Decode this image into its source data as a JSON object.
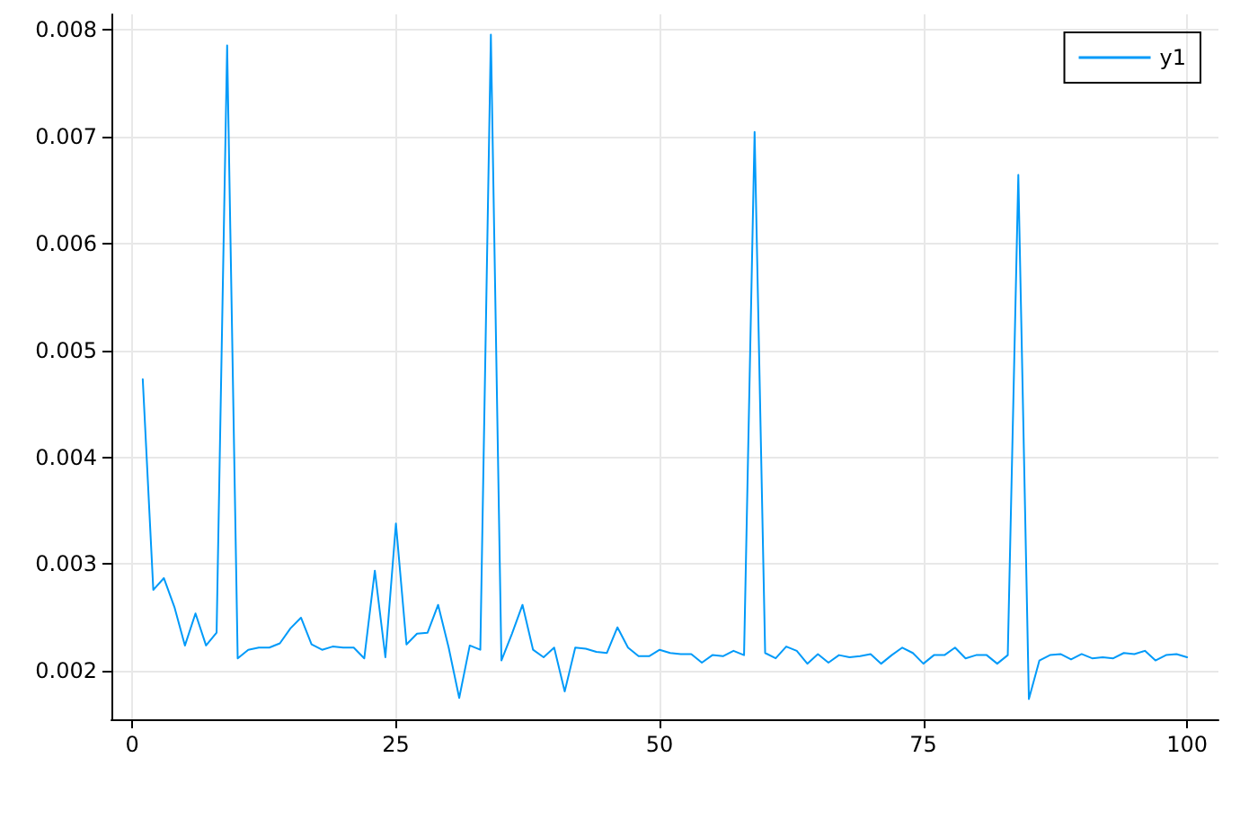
{
  "chart_data": {
    "type": "line",
    "x": [
      1,
      2,
      3,
      4,
      5,
      6,
      7,
      8,
      9,
      10,
      11,
      12,
      13,
      14,
      15,
      16,
      17,
      18,
      19,
      20,
      21,
      22,
      23,
      24,
      25,
      26,
      27,
      28,
      29,
      30,
      31,
      32,
      33,
      34,
      35,
      36,
      37,
      38,
      39,
      40,
      41,
      42,
      43,
      44,
      45,
      46,
      47,
      48,
      49,
      50,
      51,
      52,
      53,
      54,
      55,
      56,
      57,
      58,
      59,
      60,
      61,
      62,
      63,
      64,
      65,
      66,
      67,
      68,
      69,
      70,
      71,
      72,
      73,
      74,
      75,
      76,
      77,
      78,
      79,
      80,
      81,
      82,
      83,
      84,
      85,
      86,
      87,
      88,
      89,
      90,
      91,
      92,
      93,
      94,
      95,
      96,
      97,
      98,
      99,
      100
    ],
    "series": [
      {
        "name": "y1",
        "color": "#009af9",
        "values": [
          0.00473,
          0.00276,
          0.00287,
          0.0026,
          0.00224,
          0.00254,
          0.00224,
          0.00236,
          0.00785,
          0.00212,
          0.0022,
          0.00222,
          0.00222,
          0.00226,
          0.0024,
          0.0025,
          0.00225,
          0.0022,
          0.00223,
          0.00222,
          0.00222,
          0.00212,
          0.00294,
          0.00213,
          0.00338,
          0.00225,
          0.00235,
          0.00236,
          0.00262,
          0.00222,
          0.00175,
          0.00224,
          0.0022,
          0.00795,
          0.0021,
          0.00235,
          0.00262,
          0.0022,
          0.00213,
          0.00222,
          0.00181,
          0.00222,
          0.00221,
          0.00218,
          0.00217,
          0.00241,
          0.00222,
          0.00214,
          0.00214,
          0.0022,
          0.00217,
          0.00216,
          0.00216,
          0.00208,
          0.00215,
          0.00214,
          0.00219,
          0.00215,
          0.00704,
          0.00217,
          0.00212,
          0.00223,
          0.00219,
          0.00207,
          0.00216,
          0.00208,
          0.00215,
          0.00213,
          0.00214,
          0.00216,
          0.00207,
          0.00215,
          0.00222,
          0.00217,
          0.00207,
          0.00215,
          0.00215,
          0.00222,
          0.00212,
          0.00215,
          0.00215,
          0.00207,
          0.00215,
          0.00664,
          0.00174,
          0.0021,
          0.00215,
          0.00216,
          0.00211,
          0.00216,
          0.00212,
          0.00213,
          0.00212,
          0.00217,
          0.00216,
          0.00219,
          0.0021,
          0.00215,
          0.00216,
          0.00213
        ]
      }
    ],
    "xlim": [
      -1.97,
      102.97
    ],
    "ylim": [
      0.00155,
      0.00814
    ],
    "xticks": [
      0,
      25,
      50,
      75,
      100
    ],
    "yticks": [
      0.002,
      0.003,
      0.004,
      0.005,
      0.006,
      0.007,
      0.008
    ],
    "grid": true,
    "legend": "top right",
    "marker": "none",
    "line_style": "solid"
  }
}
